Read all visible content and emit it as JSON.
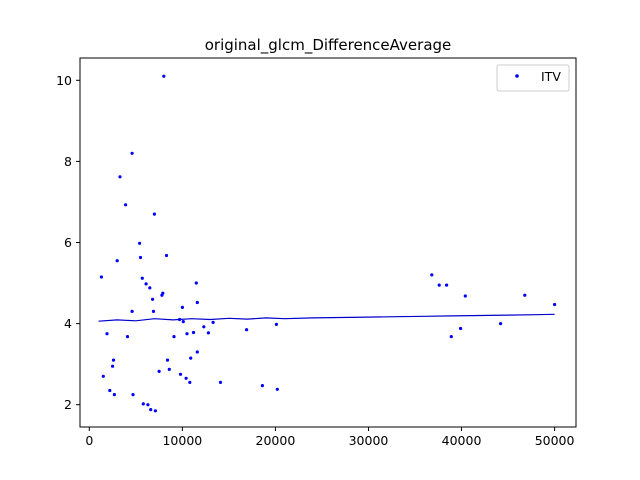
{
  "chart_data": {
    "type": "scatter",
    "title": "original_glcm_DifferenceAverage",
    "xlabel": "",
    "ylabel": "",
    "xlim": [
      -1000,
      52300
    ],
    "ylim": [
      1.45,
      10.55
    ],
    "xticks": [
      0,
      10000,
      20000,
      30000,
      40000,
      50000
    ],
    "xtick_labels": [
      "0",
      "10000",
      "20000",
      "30000",
      "40000",
      "50000"
    ],
    "yticks": [
      2,
      4,
      6,
      8,
      10
    ],
    "ytick_labels": [
      "2",
      "4",
      "6",
      "8",
      "10"
    ],
    "grid": false,
    "legend_position": "top-right",
    "colors": {
      "points": "#0000ff",
      "trend": "#0000cc",
      "axes": "#000000"
    },
    "series": [
      {
        "name": "ITV",
        "points": [
          [
            1300,
            5.15
          ],
          [
            1500,
            2.7
          ],
          [
            1900,
            3.75
          ],
          [
            2200,
            2.35
          ],
          [
            2500,
            2.95
          ],
          [
            2700,
            2.25
          ],
          [
            2600,
            3.1
          ],
          [
            3000,
            5.55
          ],
          [
            3300,
            7.62
          ],
          [
            3900,
            6.93
          ],
          [
            4100,
            3.68
          ],
          [
            4600,
            4.3
          ],
          [
            4600,
            8.2
          ],
          [
            4700,
            2.25
          ],
          [
            5400,
            5.98
          ],
          [
            5500,
            5.63
          ],
          [
            5700,
            5.12
          ],
          [
            5800,
            2.02
          ],
          [
            6100,
            4.98
          ],
          [
            6300,
            2.0
          ],
          [
            6500,
            4.88
          ],
          [
            6600,
            1.88
          ],
          [
            6800,
            4.6
          ],
          [
            6900,
            4.3
          ],
          [
            7000,
            6.7
          ],
          [
            7100,
            1.85
          ],
          [
            7500,
            2.82
          ],
          [
            7800,
            4.7
          ],
          [
            7900,
            4.75
          ],
          [
            8000,
            10.1
          ],
          [
            8300,
            5.68
          ],
          [
            8400,
            3.1
          ],
          [
            8600,
            2.87
          ],
          [
            9100,
            3.68
          ],
          [
            9700,
            4.1
          ],
          [
            9800,
            2.75
          ],
          [
            10000,
            4.4
          ],
          [
            10100,
            4.05
          ],
          [
            10400,
            2.65
          ],
          [
            10500,
            3.75
          ],
          [
            10800,
            2.55
          ],
          [
            10900,
            3.15
          ],
          [
            11200,
            3.78
          ],
          [
            11500,
            5.0
          ],
          [
            11600,
            4.52
          ],
          [
            11600,
            3.3
          ],
          [
            12300,
            3.92
          ],
          [
            12800,
            3.77
          ],
          [
            13300,
            4.03
          ],
          [
            14100,
            2.55
          ],
          [
            16900,
            3.85
          ],
          [
            18600,
            2.47
          ],
          [
            20100,
            3.98
          ],
          [
            20200,
            2.38
          ],
          [
            36800,
            5.2
          ],
          [
            37600,
            4.95
          ],
          [
            38400,
            4.95
          ],
          [
            38900,
            3.68
          ],
          [
            39900,
            3.88
          ],
          [
            40400,
            4.68
          ],
          [
            44200,
            4.0
          ],
          [
            46800,
            4.7
          ],
          [
            50000,
            4.47
          ]
        ]
      }
    ],
    "trend": [
      [
        1000,
        4.06
      ],
      [
        3000,
        4.09
      ],
      [
        5000,
        4.07
      ],
      [
        7000,
        4.12
      ],
      [
        9000,
        4.09
      ],
      [
        11000,
        4.12
      ],
      [
        13000,
        4.1
      ],
      [
        15000,
        4.13
      ],
      [
        17000,
        4.11
      ],
      [
        19000,
        4.14
      ],
      [
        21000,
        4.12
      ],
      [
        24000,
        4.14
      ],
      [
        27000,
        4.15
      ],
      [
        30000,
        4.16
      ],
      [
        33000,
        4.17
      ],
      [
        36000,
        4.18
      ],
      [
        39000,
        4.19
      ],
      [
        42000,
        4.2
      ],
      [
        45000,
        4.21
      ],
      [
        48000,
        4.22
      ],
      [
        50000,
        4.23
      ]
    ]
  }
}
